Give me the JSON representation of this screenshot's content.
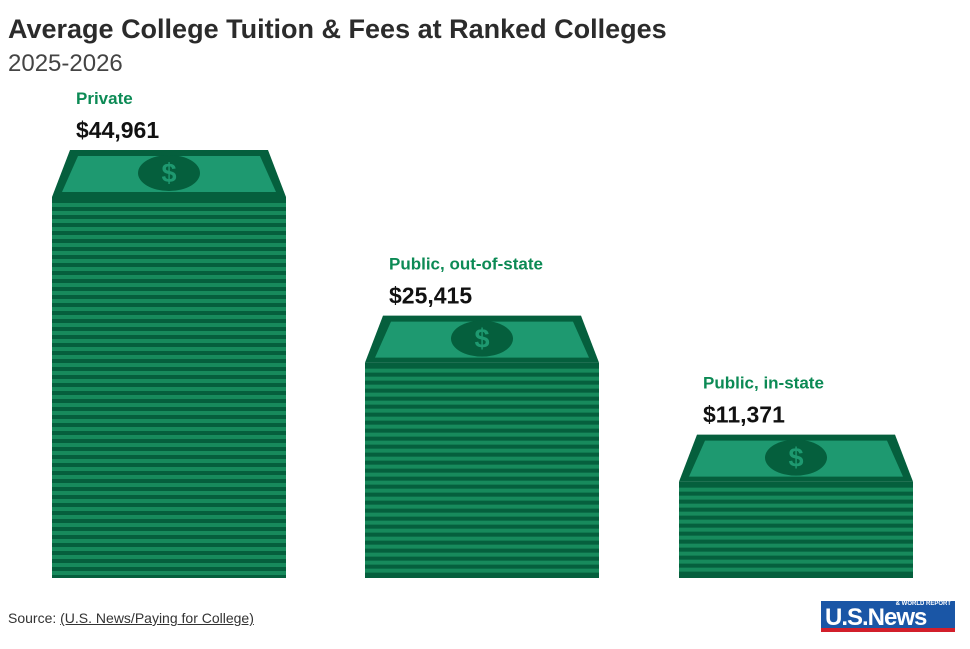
{
  "chart_data": {
    "type": "bar",
    "title": "Average College Tuition & Fees at Ranked Colleges",
    "subtitle": "2025-2026",
    "categories": [
      "Private",
      "Public, out-of-state",
      "Public, in-state"
    ],
    "values": [
      44961,
      25415,
      11371
    ],
    "value_labels": [
      "$44,961",
      "$25,415",
      "$11,371"
    ],
    "xlabel": "",
    "ylabel": "",
    "colors": {
      "dark": "#055f3d",
      "bill": "#1e9970",
      "stripe": "#178a5c",
      "label": "#0c8a55"
    }
  },
  "source": {
    "prefix": "Source: ",
    "link": "(U.S. News/Paying for College)"
  },
  "logo": {
    "main": "U.S.News",
    "small": "& WORLD REPORT"
  }
}
